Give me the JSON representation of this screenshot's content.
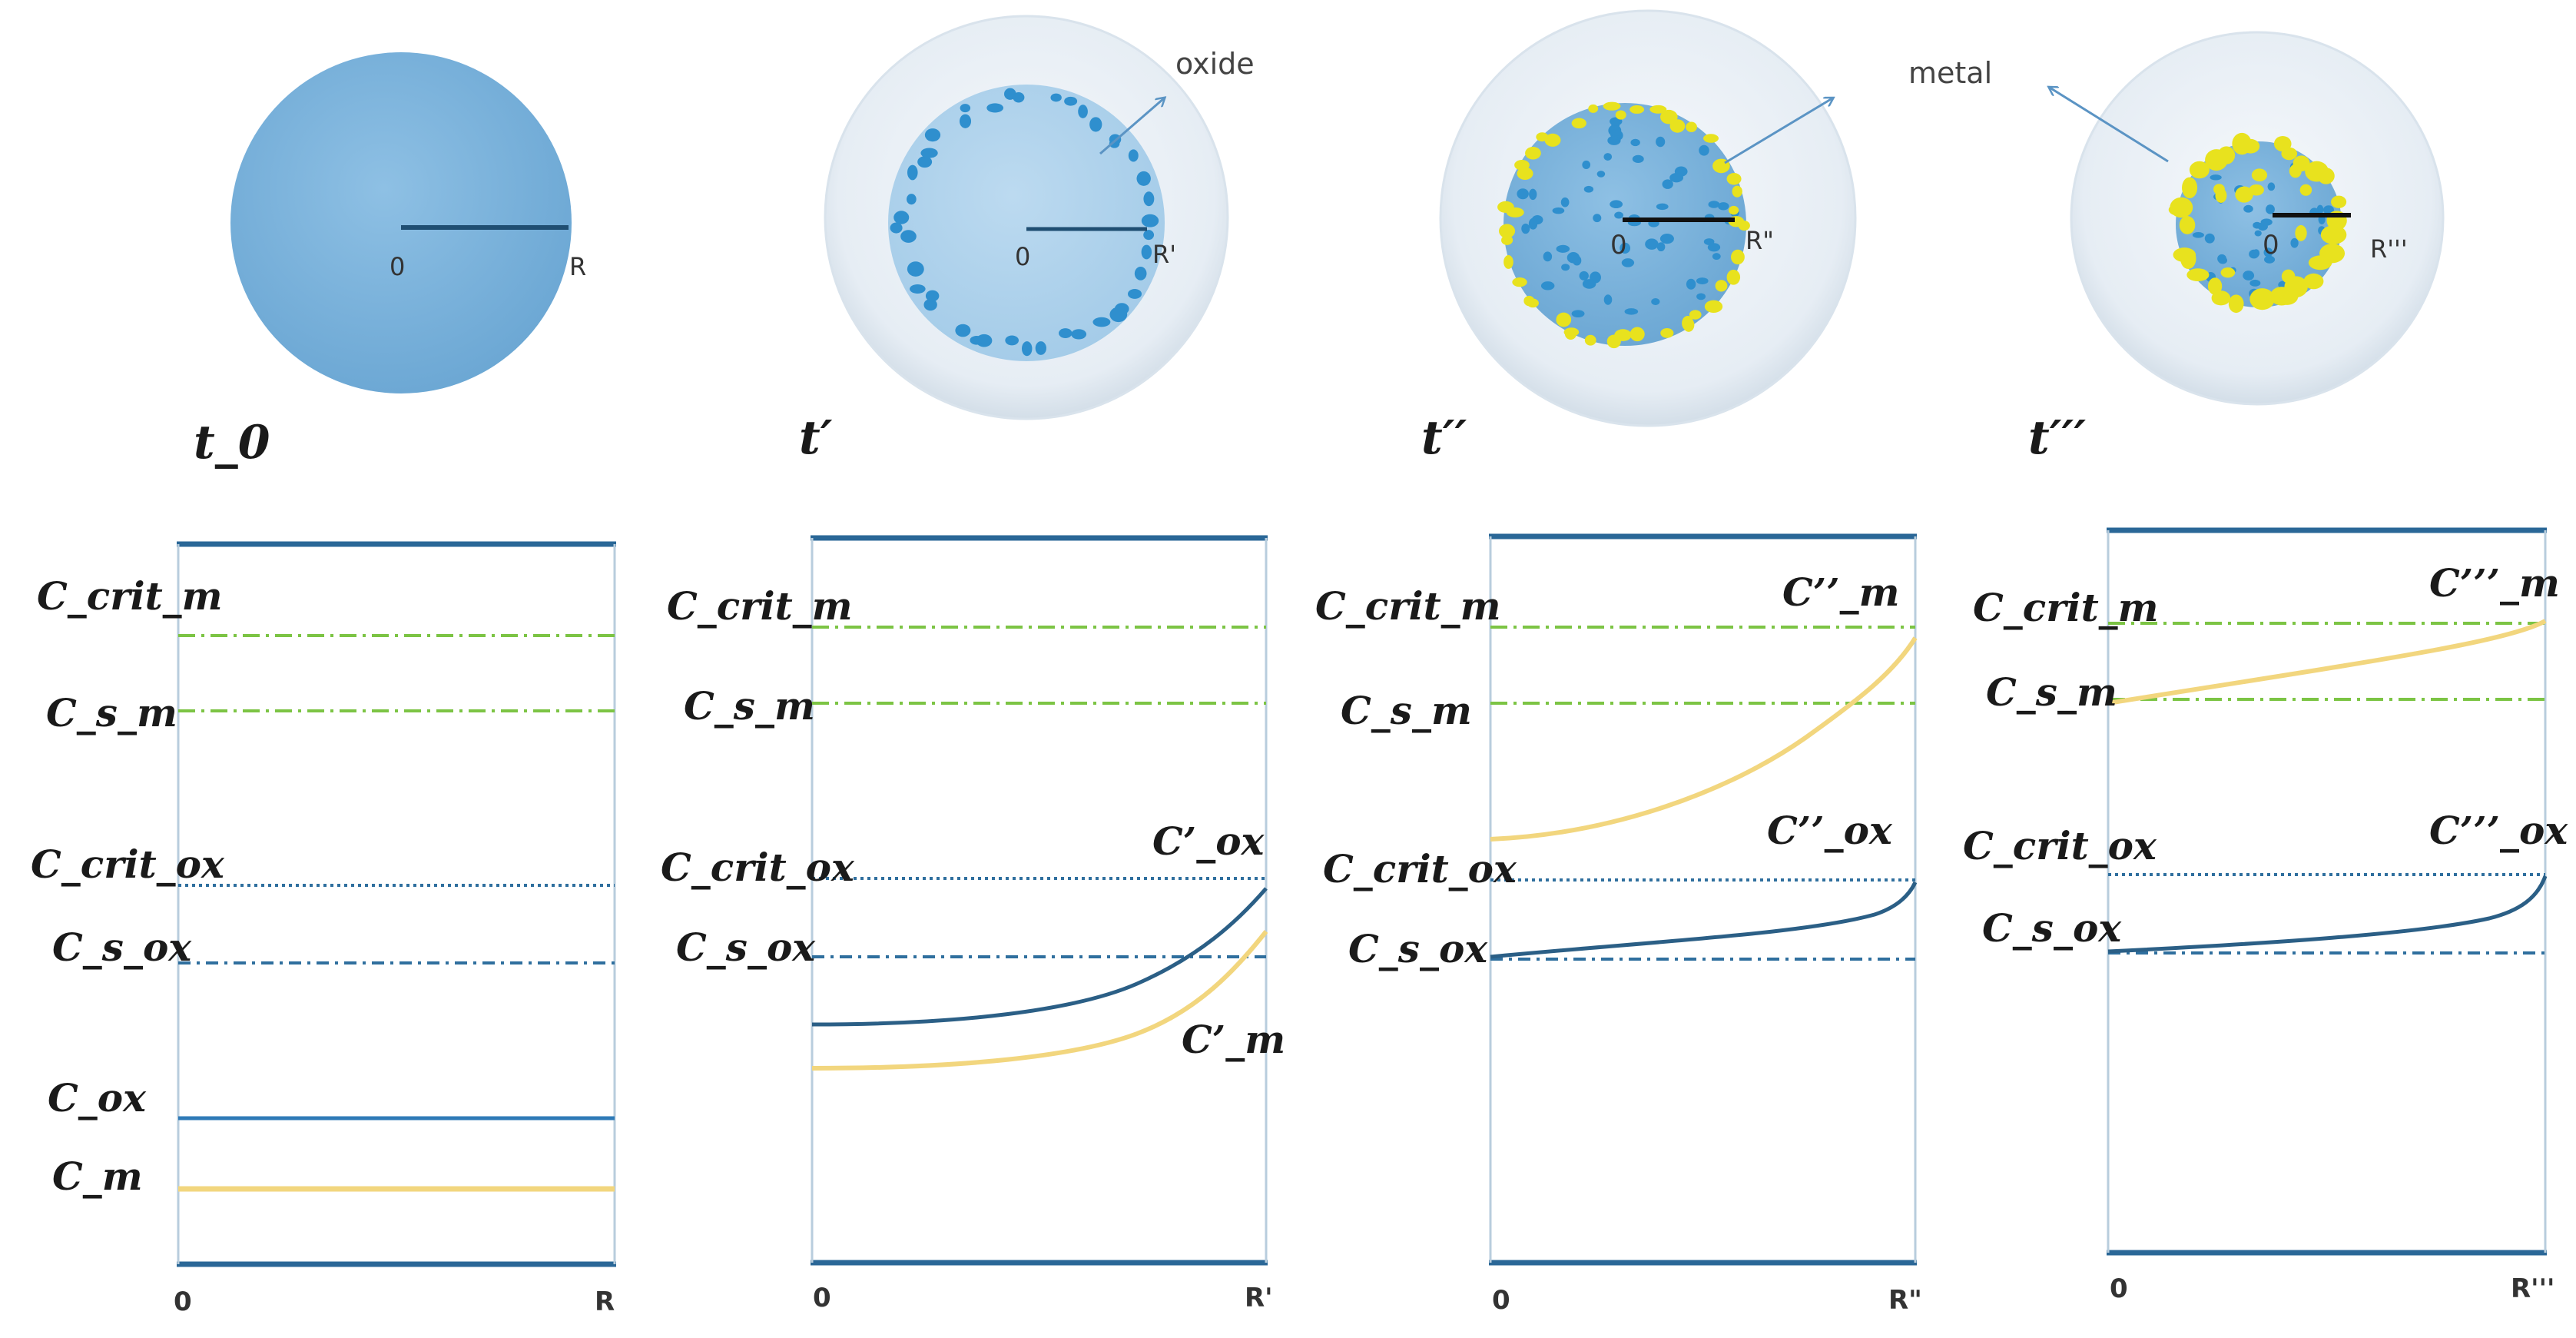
{
  "colors": {
    "particle": "#7fb1d8",
    "shell": "#e4ecf3",
    "oxide_dot": "#2f8fce",
    "metal_dot": "#e8e21e",
    "frame": "#2a6797",
    "green_line": "#7cc444",
    "blue_line": "#2f6f9e",
    "curve_ox": "#2b5f86",
    "curve_m": "#f2d67e"
  },
  "annotations": {
    "oxide": "oxide",
    "metal": "metal"
  },
  "stages": [
    {
      "time_label": "t_0",
      "center_label": "0",
      "radius_label": "R"
    },
    {
      "time_label": "t′",
      "center_label": "0",
      "radius_label": "R'"
    },
    {
      "time_label": "t′′",
      "center_label": "0",
      "radius_label": "R\""
    },
    {
      "time_label": "t′′′",
      "center_label": "0",
      "radius_label": "R'''"
    }
  ],
  "panels": [
    {
      "x_start": "0",
      "x_end": "R",
      "levels": [
        {
          "label": "C_crit_m",
          "style": "green"
        },
        {
          "label": "C_s_m",
          "style": "green"
        },
        {
          "label": "C_crit_ox",
          "style": "blue-dotted"
        },
        {
          "label": "C_s_ox",
          "style": "blue-dashdot"
        },
        {
          "label": "C_ox",
          "style": "blue-solid"
        },
        {
          "label": "C_m",
          "style": "yellow-solid"
        }
      ],
      "curve_labels": []
    },
    {
      "x_start": "0",
      "x_end": "R'",
      "levels": [
        {
          "label": "C_crit_m",
          "style": "green"
        },
        {
          "label": "C_s_m",
          "style": "green"
        },
        {
          "label": "C_crit_ox",
          "style": "blue-dotted"
        },
        {
          "label": "C_s_ox",
          "style": "blue-dashdot"
        }
      ],
      "curve_labels": [
        "C’_ox",
        "C’_m"
      ]
    },
    {
      "x_start": "0",
      "x_end": "R\"",
      "levels": [
        {
          "label": "C_crit_m",
          "style": "green"
        },
        {
          "label": "C_s_m",
          "style": "green"
        },
        {
          "label": "C_crit_ox",
          "style": "blue-dotted"
        },
        {
          "label": "C_s_ox",
          "style": "blue-dashdot"
        }
      ],
      "curve_labels": [
        "C’’_m",
        "C’’_ox"
      ]
    },
    {
      "x_start": "0",
      "x_end": "R'''",
      "levels": [
        {
          "label": "C_crit_m",
          "style": "green"
        },
        {
          "label": "C_s_m",
          "style": "green"
        },
        {
          "label": "C_crit_ox",
          "style": "blue-dotted"
        },
        {
          "label": "C_s_ox",
          "style": "blue-dashdot"
        }
      ],
      "curve_labels": [
        "C’’’_m",
        "C’’’_ox"
      ]
    }
  ]
}
